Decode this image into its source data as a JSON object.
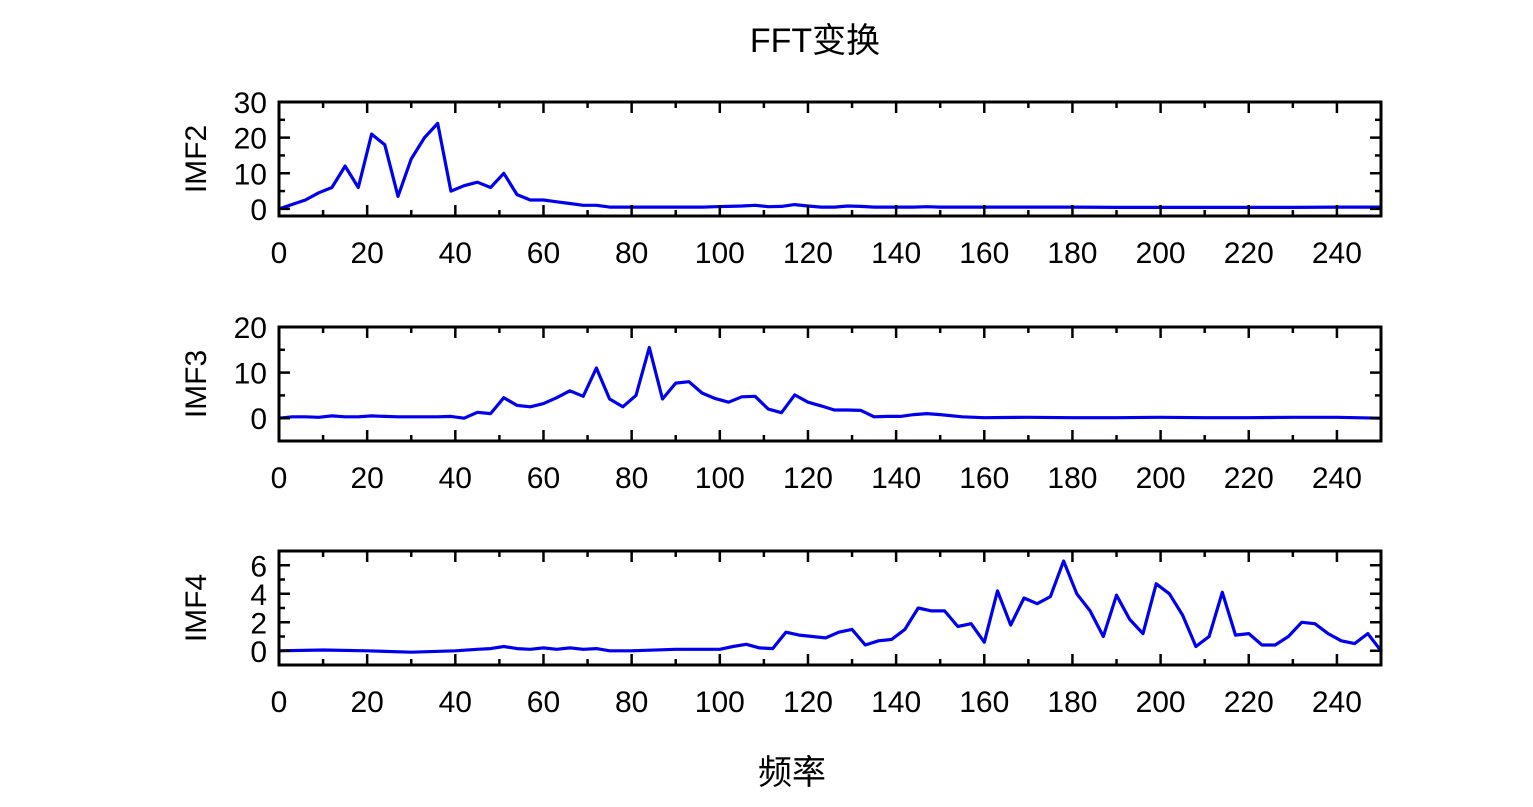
{
  "figure": {
    "title": "FFT变换",
    "xlabel": "频率",
    "line_color": "#0000ee"
  },
  "chart_data": [
    {
      "type": "line",
      "ylabel": "IMF2",
      "xlim": [
        0,
        250
      ],
      "ylim": [
        -2,
        30
      ],
      "xticks": [
        0,
        20,
        40,
        60,
        80,
        100,
        120,
        140,
        160,
        180,
        200,
        220,
        240
      ],
      "yticks": [
        0,
        10,
        20,
        30
      ],
      "x": [
        0,
        6,
        9,
        12,
        15,
        18,
        21,
        24,
        27,
        30,
        33,
        36,
        39,
        42,
        45,
        48,
        51,
        54,
        57,
        60,
        63,
        66,
        69,
        72,
        75,
        78,
        81,
        84,
        87,
        90,
        93,
        96,
        99,
        102,
        105,
        108,
        111,
        114,
        117,
        120,
        123,
        126,
        129,
        132,
        135,
        138,
        141,
        144,
        147,
        150,
        160,
        170,
        180,
        190,
        200,
        210,
        220,
        230,
        240,
        250
      ],
      "values": [
        0,
        2.5,
        4.5,
        6,
        12,
        6,
        21,
        18,
        3.5,
        14,
        20,
        24,
        5,
        6.5,
        7.5,
        6,
        10,
        4,
        2.5,
        2.5,
        2,
        1.5,
        1,
        1,
        0.5,
        0.5,
        0.5,
        0.5,
        0.5,
        0.5,
        0.5,
        0.5,
        0.6,
        0.7,
        0.8,
        1,
        0.6,
        0.7,
        1.2,
        0.8,
        0.5,
        0.5,
        0.8,
        0.7,
        0.5,
        0.5,
        0.5,
        0.5,
        0.6,
        0.5,
        0.5,
        0.5,
        0.5,
        0.4,
        0.4,
        0.4,
        0.4,
        0.4,
        0.5,
        0.5
      ]
    },
    {
      "type": "line",
      "ylabel": "IMF3",
      "xlim": [
        0,
        250
      ],
      "ylim": [
        -5,
        20
      ],
      "xticks": [
        0,
        20,
        40,
        60,
        80,
        100,
        120,
        140,
        160,
        180,
        200,
        220,
        240
      ],
      "yticks": [
        0,
        10,
        20
      ],
      "x": [
        0,
        3,
        6,
        9,
        12,
        15,
        18,
        21,
        24,
        27,
        30,
        33,
        36,
        39,
        42,
        45,
        48,
        51,
        54,
        57,
        60,
        63,
        66,
        69,
        72,
        75,
        78,
        81,
        84,
        87,
        90,
        93,
        96,
        99,
        102,
        105,
        108,
        111,
        114,
        117,
        120,
        123,
        126,
        129,
        132,
        135,
        138,
        141,
        144,
        147,
        150,
        155,
        160,
        170,
        180,
        190,
        200,
        210,
        220,
        230,
        240,
        250
      ],
      "values": [
        0,
        0.3,
        0.3,
        0.2,
        0.5,
        0.3,
        0.3,
        0.5,
        0.4,
        0.3,
        0.3,
        0.3,
        0.3,
        0.4,
        0,
        1.3,
        1,
        4.5,
        2.8,
        2.5,
        3.2,
        4.5,
        6,
        4.8,
        11,
        4.2,
        2.5,
        5,
        15.5,
        4.2,
        7.7,
        8,
        5.5,
        4.3,
        3.5,
        4.7,
        4.8,
        2,
        1.2,
        5.1,
        3.5,
        2.7,
        1.8,
        1.8,
        1.7,
        0.3,
        0.4,
        0.4,
        0.8,
        1,
        0.8,
        0.3,
        0.1,
        0.2,
        0.1,
        0.1,
        0.2,
        0.1,
        0.1,
        0.2,
        0.2,
        0
      ]
    },
    {
      "type": "line",
      "ylabel": "IMF4",
      "xlim": [
        0,
        250
      ],
      "ylim": [
        -1,
        7
      ],
      "xticks": [
        0,
        20,
        40,
        60,
        80,
        100,
        120,
        140,
        160,
        180,
        200,
        220,
        240
      ],
      "yticks": [
        0,
        2,
        4,
        6
      ],
      "x": [
        0,
        10,
        20,
        30,
        40,
        45,
        48,
        51,
        54,
        57,
        60,
        63,
        66,
        69,
        72,
        75,
        80,
        90,
        100,
        103,
        106,
        109,
        112,
        115,
        118,
        121,
        124,
        127,
        130,
        133,
        136,
        139,
        142,
        145,
        148,
        151,
        154,
        157,
        160,
        163,
        166,
        169,
        172,
        175,
        178,
        181,
        184,
        187,
        190,
        193,
        196,
        199,
        202,
        205,
        208,
        211,
        214,
        217,
        220,
        223,
        226,
        229,
        232,
        235,
        238,
        241,
        244,
        247,
        250
      ],
      "values": [
        0,
        0.05,
        0,
        -0.1,
        0,
        0.1,
        0.15,
        0.3,
        0.15,
        0.1,
        0.2,
        0.1,
        0.2,
        0.1,
        0.15,
        0,
        0,
        0.1,
        0.1,
        0.3,
        0.45,
        0.2,
        0.15,
        1.3,
        1.1,
        1,
        0.9,
        1.3,
        1.5,
        0.4,
        0.7,
        0.8,
        1.5,
        3,
        2.8,
        2.8,
        1.7,
        1.9,
        0.6,
        4.2,
        1.8,
        3.7,
        3.3,
        3.8,
        6.3,
        4,
        2.8,
        1,
        3.9,
        2.2,
        1.2,
        4.7,
        4,
        2.5,
        0.3,
        1,
        4.1,
        1.1,
        1.2,
        0.4,
        0.4,
        1,
        2,
        1.9,
        1.2,
        0.7,
        0.5,
        1.2,
        0
      ]
    }
  ]
}
